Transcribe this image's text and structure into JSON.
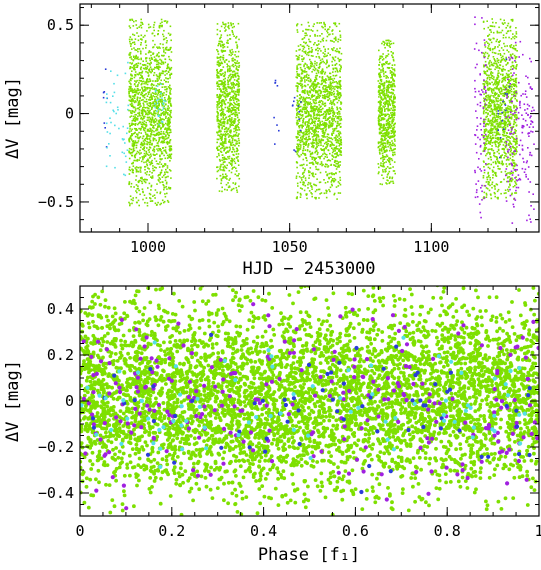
{
  "colors": {
    "green": "#7ee000",
    "blue": "#2a3cd8",
    "cyan": "#55dfe8",
    "purple": "#a020e0"
  },
  "chart_data": [
    {
      "type": "scatter",
      "id": "top",
      "xlabel": "HJD − 2453000",
      "ylabel": "ΔV [mag]",
      "xlim": [
        976,
        1138
      ],
      "ylim": [
        0.62,
        -0.67
      ],
      "y_inverted": true,
      "xticks_major": [
        1000,
        1050,
        1100
      ],
      "xtick_labels": [
        "1000",
        "1050",
        "1100"
      ],
      "yticks_major": [
        -0.5,
        0,
        0.5
      ],
      "ytick_labels": [
        "−0.5",
        "0",
        "0.5"
      ],
      "grid": false,
      "series": [
        {
          "color": "green",
          "clusters": [
            {
              "x": [
                993,
                1008
              ],
              "y": [
                -0.52,
                0.54
              ]
            },
            {
              "x": [
                1024,
                1032
              ],
              "y": [
                -0.44,
                0.52
              ]
            },
            {
              "x": [
                1052,
                1068
              ],
              "y": [
                -0.48,
                0.52
              ]
            },
            {
              "x": [
                1081,
                1087
              ],
              "y": [
                -0.4,
                0.42
              ]
            },
            {
              "x": [
                1118,
                1130
              ],
              "y": [
                -0.48,
                0.54
              ]
            }
          ]
        },
        {
          "color": "blue",
          "clusters": [
            {
              "x": [
                984,
                986
              ],
              "y": [
                -0.2,
                0.26
              ]
            },
            {
              "x": [
                1044,
                1046
              ],
              "y": [
                -0.18,
                0.24
              ]
            },
            {
              "x": [
                1050,
                1054
              ],
              "y": [
                -0.25,
                0.28
              ]
            },
            {
              "x": [
                1122,
                1128
              ],
              "y": [
                -0.3,
                0.35
              ]
            }
          ]
        },
        {
          "color": "cyan",
          "clusters": [
            {
              "x": [
                985,
                993
              ],
              "y": [
                -0.45,
                0.3
              ]
            },
            {
              "x": [
                1002,
                1006
              ],
              "y": [
                -0.1,
                0.2
              ]
            }
          ]
        },
        {
          "color": "purple",
          "clusters": [
            {
              "x": [
                1115,
                1119
              ],
              "y": [
                -0.62,
                0.56
              ]
            },
            {
              "x": [
                1126,
                1136
              ],
              "y": [
                -0.62,
                0.44
              ]
            }
          ]
        }
      ]
    },
    {
      "type": "scatter",
      "id": "bottom",
      "xlabel": "Phase [f₁]",
      "ylabel": "ΔV [mag]",
      "xlim": [
        0,
        1
      ],
      "ylim": [
        0.5,
        -0.5
      ],
      "y_inverted": true,
      "xticks_major": [
        0,
        0.2,
        0.4,
        0.6,
        0.8,
        1
      ],
      "xtick_labels": [
        "0",
        "0.2",
        "0.4",
        "0.6",
        "0.8",
        "1"
      ],
      "yticks_major": [
        -0.4,
        -0.2,
        0,
        0.2,
        0.4
      ],
      "ytick_labels": [
        "−0.4",
        "−0.2",
        "0",
        "0.2",
        "0.4"
      ],
      "grid": false,
      "series": [
        {
          "color": "green",
          "distribution": "uniform",
          "x": [
            0,
            1
          ],
          "y": [
            -0.45,
            0.5
          ]
        },
        {
          "color": "purple",
          "distribution": "uniform",
          "x": [
            0,
            1
          ],
          "y": [
            -0.45,
            0.45
          ]
        },
        {
          "color": "blue",
          "distribution": "uniform",
          "x": [
            0,
            1
          ],
          "y": [
            -0.3,
            0.3
          ]
        },
        {
          "color": "cyan",
          "distribution": "uniform",
          "x": [
            0,
            1
          ],
          "y": [
            -0.3,
            0.3
          ]
        }
      ]
    }
  ]
}
